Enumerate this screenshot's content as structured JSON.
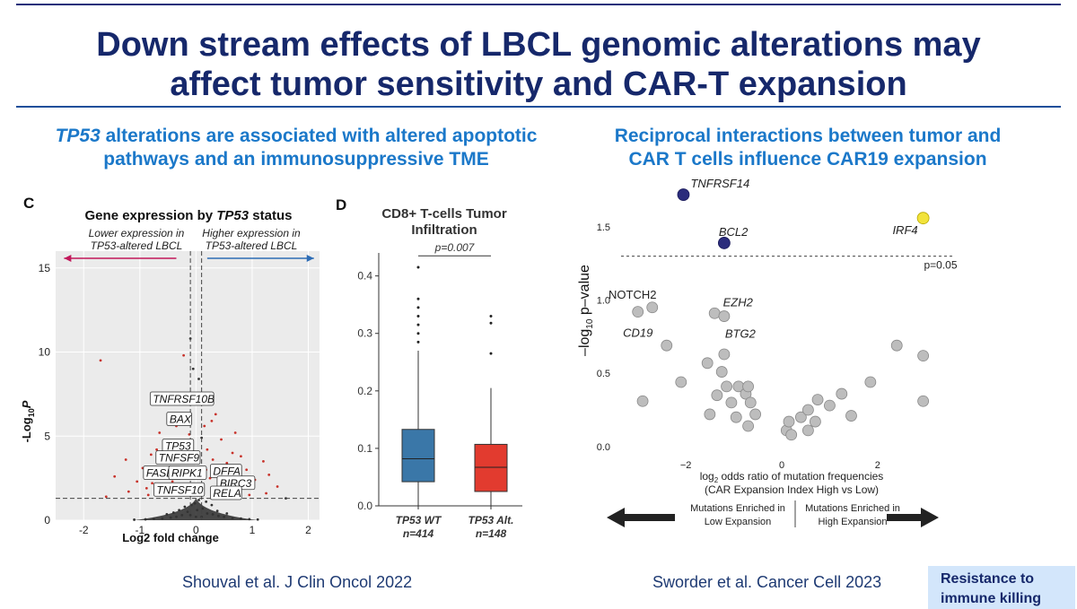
{
  "slide": {
    "title_line1": "Down stream effects of LBCL genomic alterations may",
    "title_line2": "affect tumor sensitivity and CAR-T expansion",
    "left_subtitle_gene": "TP53",
    "left_subtitle_rest1": " alterations are associated with altered apoptotic",
    "left_subtitle_line2": "pathways and an immunosuppressive TME",
    "right_subtitle_line1": "Reciprocal interactions between tumor and",
    "right_subtitle_line2": "CAR T cells influence CAR19 expansion",
    "left_citation": "Shouval et al. J Clin Oncol 2022",
    "right_citation": "Sworder et al. Cancer Cell 2023",
    "callout_line1": "Resistance to",
    "callout_line2": "immune killing"
  },
  "colors": {
    "title": "#16286b",
    "subtitle": "#1b78c9",
    "rule": "#1d4f9a",
    "wt_box": "#3a77a8",
    "alt_box": "#e23b2f",
    "navy_point": "#2b2c7c",
    "yellow_point": "#f2e33b",
    "grey_point": "#bdbdbd",
    "volcano_red": "#c8322a"
  },
  "chart_data": [
    {
      "type": "scatter",
      "panel_letter": "C",
      "title_prefix": "Gene expression by ",
      "title_gene": "TP53",
      "title_suffix": " status",
      "left_arrow_line1": "Lower expression in",
      "left_arrow_line2": "TP53-altered LBCL",
      "right_arrow_line1": "Higher expression in",
      "right_arrow_line2": "TP53-altered LBCL",
      "xlabel": "Log2 fold change",
      "ylabel": "-Log",
      "ylabel_sub": "10",
      "ylabel_p": "P",
      "xlim": [
        -2.5,
        2.2
      ],
      "ylim": [
        0,
        16
      ],
      "xticks": [
        -2,
        -1,
        0,
        1,
        2
      ],
      "yticks": [
        0,
        5,
        10,
        15
      ],
      "fc_threshold": 0.1,
      "p_threshold": 1.3,
      "labels": [
        {
          "text": "TNFRSF10B",
          "x": -0.25,
          "y": 7.2
        },
        {
          "text": "BAX",
          "x": -0.3,
          "y": 6.0
        },
        {
          "text": "TP53",
          "x": -0.32,
          "y": 4.4
        },
        {
          "text": "TNFSF9",
          "x": -0.32,
          "y": 3.7
        },
        {
          "text": "FASLG",
          "x": -0.6,
          "y": 2.8
        },
        {
          "text": "RIPK1",
          "x": -0.15,
          "y": 2.8
        },
        {
          "text": "DFFA",
          "x": 0.32,
          "y": 2.9
        },
        {
          "text": "BIRC3",
          "x": 0.44,
          "y": 2.2
        },
        {
          "text": "TNFSF10",
          "x": -0.3,
          "y": 1.8
        },
        {
          "text": "RELA",
          "x": 0.32,
          "y": 1.6
        }
      ],
      "points": [
        {
          "x": 0.05,
          "y": 1.2
        },
        {
          "x": -0.08,
          "y": 0.9
        },
        {
          "x": 0.12,
          "y": 0.7
        },
        {
          "x": -0.15,
          "y": 0.5
        },
        {
          "x": 0.2,
          "y": 0.4
        },
        {
          "x": -0.25,
          "y": 0.3
        },
        {
          "x": 0.3,
          "y": 0.35
        },
        {
          "x": -0.35,
          "y": 0.2
        },
        {
          "x": 0.4,
          "y": 0.25
        },
        {
          "x": -0.45,
          "y": 0.15
        },
        {
          "x": 0.5,
          "y": 0.2
        },
        {
          "x": -0.6,
          "y": 0.1
        },
        {
          "x": 0.65,
          "y": 0.12
        },
        {
          "x": -0.75,
          "y": 0.08
        },
        {
          "x": 0.8,
          "y": 0.1
        },
        {
          "x": -0.02,
          "y": 1.0
        },
        {
          "x": 0.02,
          "y": 0.6
        },
        {
          "x": -0.1,
          "y": 0.3
        },
        {
          "x": 0.1,
          "y": 0.2
        },
        {
          "x": -0.2,
          "y": 0.8
        },
        {
          "x": 0.18,
          "y": 1.1
        },
        {
          "x": -0.3,
          "y": 0.6
        },
        {
          "x": 0.28,
          "y": 0.9
        },
        {
          "x": -0.4,
          "y": 0.45
        },
        {
          "x": 0.38,
          "y": 0.55
        },
        {
          "x": -0.52,
          "y": 0.35
        },
        {
          "x": 0.55,
          "y": 0.4
        },
        {
          "x": -0.9,
          "y": 0.05
        },
        {
          "x": 0.95,
          "y": 0.06
        },
        {
          "x": -1.1,
          "y": 0.03
        },
        {
          "x": 1.1,
          "y": 0.04
        },
        {
          "x": 0.0,
          "y": 0.2
        },
        {
          "x": 0.35,
          "y": 1.7
        },
        {
          "x": 0.5,
          "y": 2.1
        },
        {
          "x": 0.25,
          "y": 2.5
        },
        {
          "x": 0.42,
          "y": 3.1
        },
        {
          "x": 0.6,
          "y": 2.6
        },
        {
          "x": 0.3,
          "y": 3.6
        },
        {
          "x": 0.55,
          "y": 3.4
        },
        {
          "x": 0.75,
          "y": 2.3
        },
        {
          "x": 0.2,
          "y": 4.2
        },
        {
          "x": 0.65,
          "y": 4.0
        },
        {
          "x": 0.85,
          "y": 1.9
        },
        {
          "x": 0.45,
          "y": 4.8
        },
        {
          "x": 0.15,
          "y": 5.6
        },
        {
          "x": 0.7,
          "y": 5.2
        },
        {
          "x": 0.9,
          "y": 3.0
        },
        {
          "x": 1.05,
          "y": 2.4
        },
        {
          "x": 1.25,
          "y": 1.6
        },
        {
          "x": 0.35,
          "y": 6.3
        },
        {
          "x": 0.25,
          "y": 7.5
        },
        {
          "x": 1.2,
          "y": 3.5
        },
        {
          "x": 1.3,
          "y": 2.7
        },
        {
          "x": 0.55,
          "y": 2.0
        },
        {
          "x": 0.95,
          "y": 1.5
        },
        {
          "x": 0.4,
          "y": 1.5
        },
        {
          "x": -0.35,
          "y": 1.6
        },
        {
          "x": -0.5,
          "y": 2.0
        },
        {
          "x": -0.25,
          "y": 2.6
        },
        {
          "x": -0.45,
          "y": 3.0
        },
        {
          "x": -0.62,
          "y": 2.5
        },
        {
          "x": -0.3,
          "y": 3.8
        },
        {
          "x": -0.55,
          "y": 3.5
        },
        {
          "x": -0.78,
          "y": 2.2
        },
        {
          "x": -0.2,
          "y": 4.6
        },
        {
          "x": -0.7,
          "y": 4.2
        },
        {
          "x": -0.88,
          "y": 1.9
        },
        {
          "x": -0.15,
          "y": 6.9
        },
        {
          "x": -0.95,
          "y": 3.1
        },
        {
          "x": -1.05,
          "y": 2.3
        },
        {
          "x": -1.2,
          "y": 1.7
        },
        {
          "x": -0.65,
          "y": 5.2
        },
        {
          "x": -0.35,
          "y": 5.6
        },
        {
          "x": -1.25,
          "y": 3.6
        },
        {
          "x": -0.5,
          "y": 1.5
        },
        {
          "x": -0.85,
          "y": 1.5
        },
        {
          "x": -0.22,
          "y": 9.8
        },
        {
          "x": -0.1,
          "y": 10.8
        },
        {
          "x": -1.7,
          "y": 9.5
        },
        {
          "x": -1.45,
          "y": 2.6
        },
        {
          "x": -0.42,
          "y": 2.3
        },
        {
          "x": 0.48,
          "y": 2.8
        },
        {
          "x": 0.18,
          "y": 3.0
        },
        {
          "x": 0.1,
          "y": 4.9
        },
        {
          "x": -0.12,
          "y": 5.1
        },
        {
          "x": 0.62,
          "y": 1.8
        },
        {
          "x": -0.58,
          "y": 1.8
        },
        {
          "x": 1.45,
          "y": 2.0
        },
        {
          "x": 1.6,
          "y": 1.3
        },
        {
          "x": -1.6,
          "y": 1.4
        },
        {
          "x": 0.05,
          "y": 8.4
        },
        {
          "x": -0.05,
          "y": 9.0
        },
        {
          "x": 0.8,
          "y": 3.8
        },
        {
          "x": -0.8,
          "y": 3.9
        },
        {
          "x": 0.28,
          "y": 5.9
        },
        {
          "x": -0.28,
          "y": 6.3
        }
      ]
    },
    {
      "type": "box",
      "panel_letter": "D",
      "title_line1": "CD8+ T-cells Tumor",
      "title_line2": "Infiltration",
      "pvalue": "p=0.007",
      "ylim": [
        0,
        0.44
      ],
      "yticks": [
        0.0,
        0.1,
        0.2,
        0.3,
        0.4
      ],
      "ytick_labels": [
        "0.0",
        "0.1",
        "0.2",
        "0.3",
        "0.4"
      ],
      "groups": [
        {
          "name": "TP53 WT",
          "n": "n=414",
          "whisker_low": 0.0,
          "q1": 0.042,
          "median": 0.082,
          "q3": 0.133,
          "whisker_high": 0.27,
          "outliers": [
            0.285,
            0.3,
            0.315,
            0.33,
            0.345,
            0.36,
            0.415
          ]
        },
        {
          "name": "TP53 Alt.",
          "n": "n=148",
          "whisker_low": 0.0,
          "q1": 0.025,
          "median": 0.067,
          "q3": 0.107,
          "whisker_high": 0.205,
          "outliers": [
            0.265,
            0.318,
            0.33
          ]
        }
      ]
    },
    {
      "type": "scatter",
      "ylabel_prefix": "–log",
      "ylabel_sub": "10",
      "ylabel_suffix": " p–value",
      "xlabel_line1_prefix": "log",
      "xlabel_line1_sub": "2",
      "xlabel_line1_suffix": " odds ratio of mutation frequencies",
      "xlabel_line2": "(CAR Expansion Index High vs Low)",
      "xlim": [
        -3.5,
        3.5
      ],
      "ylim": [
        -0.05,
        1.8
      ],
      "xticks": [
        -2,
        0,
        2
      ],
      "xtick_labels": [
        "−2",
        "0",
        "2"
      ],
      "yticks": [
        0.0,
        0.5,
        1.0,
        1.5
      ],
      "ytick_labels": [
        "0.0",
        "0.5",
        "1.0",
        "1.5"
      ],
      "threshold": 1.3,
      "threshold_label": "p=0.05",
      "left_direction_line1": "Mutations Enriched in",
      "left_direction_line2": "Low Expansion",
      "right_direction_line1": "Mutations Enriched in",
      "right_direction_line2": "High Expansion",
      "highlighted": [
        {
          "label": "TNFRSF14",
          "x": -2.05,
          "y": 1.72,
          "color": "navy"
        },
        {
          "label": "BCL2",
          "x": -1.2,
          "y": 1.39,
          "color": "navy"
        },
        {
          "label": "IRF4",
          "x": 2.95,
          "y": 1.56,
          "color": "yellow"
        }
      ],
      "labeled_grey": [
        {
          "label": "NOTCH2",
          "x": -2.7,
          "y": 0.95
        },
        {
          "label": "CD19",
          "x": -3.0,
          "y": 0.92
        },
        {
          "label": "EZH2",
          "x": -1.4,
          "y": 0.91
        },
        {
          "label": "BTG2",
          "x": -1.2,
          "y": 0.89
        }
      ],
      "grey_points": [
        {
          "x": -2.4,
          "y": 0.69
        },
        {
          "x": -2.1,
          "y": 0.44
        },
        {
          "x": -1.55,
          "y": 0.57
        },
        {
          "x": -1.2,
          "y": 0.63
        },
        {
          "x": -1.25,
          "y": 0.51
        },
        {
          "x": -1.5,
          "y": 0.22
        },
        {
          "x": -1.35,
          "y": 0.35
        },
        {
          "x": -1.15,
          "y": 0.41
        },
        {
          "x": -1.05,
          "y": 0.3
        },
        {
          "x": -0.95,
          "y": 0.2
        },
        {
          "x": -0.9,
          "y": 0.41
        },
        {
          "x": -0.75,
          "y": 0.36
        },
        {
          "x": -0.7,
          "y": 0.41
        },
        {
          "x": -0.65,
          "y": 0.3
        },
        {
          "x": -0.7,
          "y": 0.14
        },
        {
          "x": -0.55,
          "y": 0.22
        },
        {
          "x": -2.9,
          "y": 0.31
        },
        {
          "x": 0.1,
          "y": 0.11
        },
        {
          "x": 0.15,
          "y": 0.17
        },
        {
          "x": 0.2,
          "y": 0.08
        },
        {
          "x": 0.4,
          "y": 0.2
        },
        {
          "x": 0.55,
          "y": 0.25
        },
        {
          "x": 0.75,
          "y": 0.32
        },
        {
          "x": 0.7,
          "y": 0.17
        },
        {
          "x": 1.0,
          "y": 0.28
        },
        {
          "x": 1.25,
          "y": 0.36
        },
        {
          "x": 1.45,
          "y": 0.21
        },
        {
          "x": 1.85,
          "y": 0.44
        },
        {
          "x": 2.4,
          "y": 0.69
        },
        {
          "x": 2.95,
          "y": 0.62
        },
        {
          "x": 2.95,
          "y": 0.31
        },
        {
          "x": 0.55,
          "y": 0.11
        }
      ]
    }
  ]
}
